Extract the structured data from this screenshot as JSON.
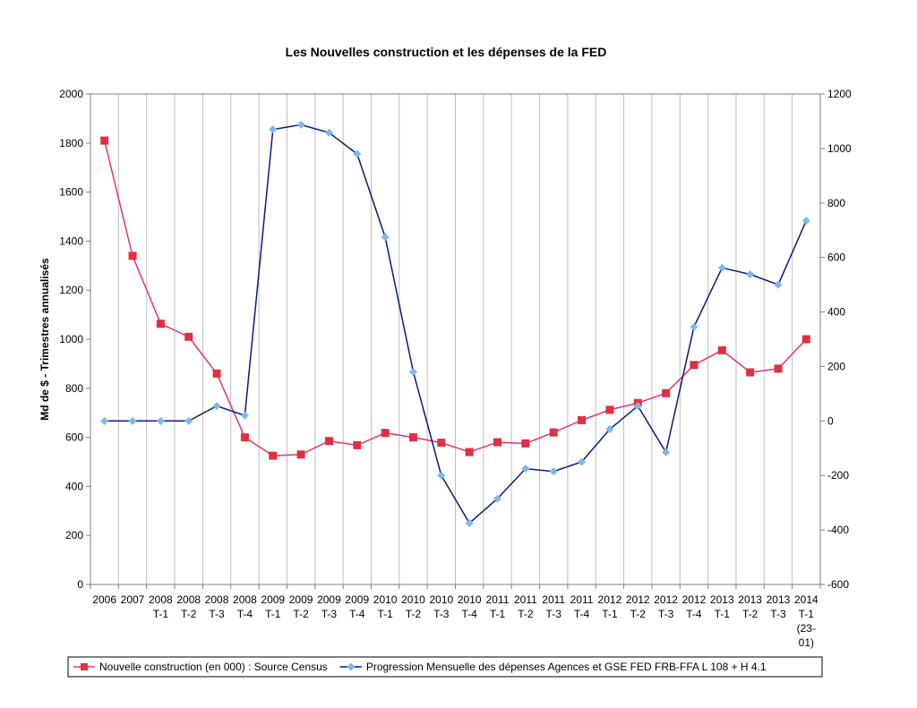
{
  "chart_data": {
    "type": "line",
    "title": "Les Nouvelles construction et les dépenses de la FED",
    "ylabel_left": "Md de $ - Trimestres annualisés",
    "ylabel_right": "",
    "xlabel": "",
    "y_left_lim": [
      0,
      2000
    ],
    "y_left_ticks": [
      "0",
      "200",
      "400",
      "600",
      "800",
      "1000",
      "1200",
      "1400",
      "1600",
      "1800",
      "2000"
    ],
    "y_right_lim": [
      -600,
      1200
    ],
    "y_right_ticks": [
      "-600",
      "-400",
      "-200",
      "0",
      "200",
      "400",
      "600",
      "800",
      "1000",
      "1200"
    ],
    "grid": "vertical",
    "legend_position": "bottom",
    "categories": [
      [
        "2006"
      ],
      [
        "2007"
      ],
      [
        "2008",
        "T-1"
      ],
      [
        "2008",
        "T-2"
      ],
      [
        "2008",
        "T-3"
      ],
      [
        "2008",
        "T-4"
      ],
      [
        "2009",
        "T-1"
      ],
      [
        "2009",
        "T-2"
      ],
      [
        "2009",
        "T-3"
      ],
      [
        "2009",
        "T-4"
      ],
      [
        "2010",
        "T-1"
      ],
      [
        "2010",
        "T-2"
      ],
      [
        "2010",
        "T-3"
      ],
      [
        "2010",
        "T-4"
      ],
      [
        "2011",
        "T-1"
      ],
      [
        "2011",
        "T-2"
      ],
      [
        "2011",
        "T-3"
      ],
      [
        "2011",
        "T-4"
      ],
      [
        "2012",
        "T-1"
      ],
      [
        "2012",
        "T-2"
      ],
      [
        "2012",
        "T-3"
      ],
      [
        "2012",
        "T-4"
      ],
      [
        "2013",
        "T-1"
      ],
      [
        "2013",
        "T-2"
      ],
      [
        "2013",
        "T-3"
      ],
      [
        "2014",
        "T-1",
        "(23-",
        "01)"
      ]
    ],
    "series": [
      {
        "name": "Nouvelle construction (en 000) : Source Census",
        "axis": "left",
        "color": "#e8307a",
        "marker": "square",
        "marker_color": "#e03040",
        "values": [
          1810,
          1340,
          1063,
          1010,
          860,
          600,
          525,
          530,
          585,
          568,
          618,
          600,
          578,
          540,
          580,
          575,
          620,
          670,
          712,
          740,
          780,
          895,
          955,
          865,
          880,
          1000
        ]
      },
      {
        "name": "Progression Mensuelle des dépenses Agences et GSE FED FRB-FFA L 108 + H 4.1",
        "axis": "right",
        "color": "#0a1a7a",
        "marker": "diamond",
        "marker_color": "#7ab8f0",
        "values": [
          0,
          0,
          0,
          0,
          55,
          20,
          1070,
          1087,
          1058,
          980,
          675,
          180,
          -200,
          -375,
          -285,
          -175,
          -185,
          -150,
          -30,
          55,
          -115,
          345,
          562,
          538,
          500,
          735
        ]
      }
    ]
  }
}
